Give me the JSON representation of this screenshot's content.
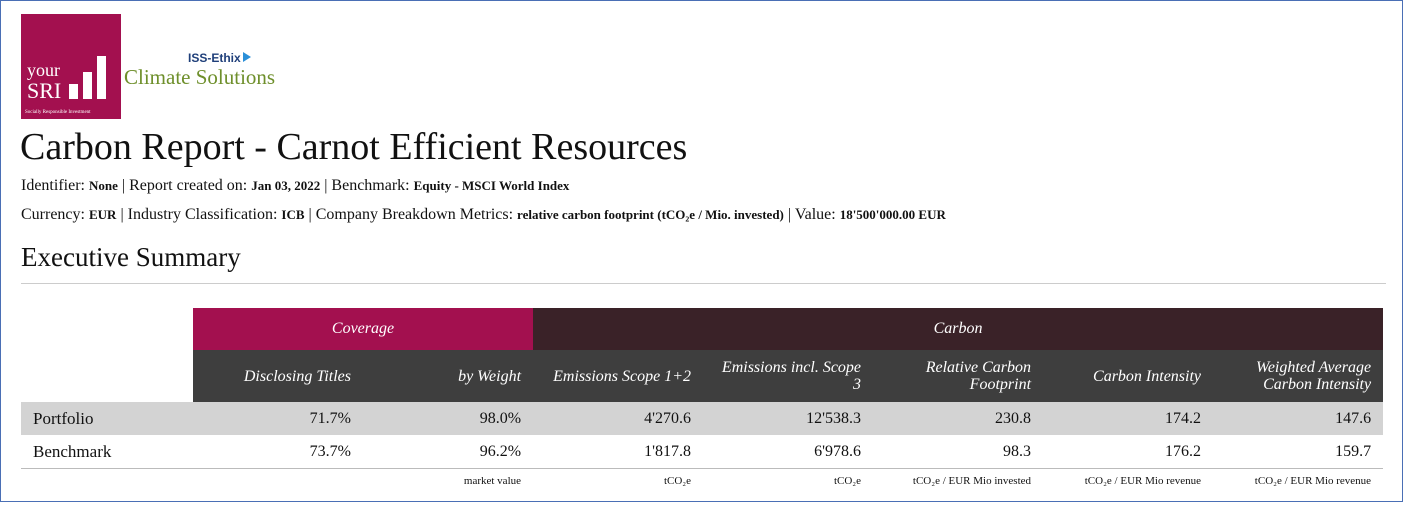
{
  "logo": {
    "brand_line1": "your",
    "brand_line2": "SRI",
    "tagline": "Socially Responsible Investment",
    "partner": "ISS-Ethix",
    "product": "Climate Solutions"
  },
  "title": "Carbon Report - Carnot Efficient Resources",
  "separator": "|",
  "meta_lines": [
    [
      {
        "label": "Identifier:",
        "value": "None"
      },
      {
        "label": "Report created on:",
        "value": "Jan 03, 2022"
      },
      {
        "label": "Benchmark:",
        "value": "Equity - MSCI World Index"
      }
    ],
    [
      {
        "label": "Currency:",
        "value": "EUR"
      },
      {
        "label": "Industry Classification:",
        "value": "ICB"
      },
      {
        "label": "Company Breakdown Metrics:",
        "value": "relative carbon footprint (tCO₂e / Mio. invested)"
      },
      {
        "label": "Value:",
        "value": "18'500'000.00 EUR"
      }
    ]
  ],
  "section_title": "Executive Summary",
  "table": {
    "groups": [
      "Coverage",
      "Carbon"
    ],
    "columns": [
      "Disclosing Titles",
      "by Weight",
      "Emissions Scope 1+2",
      "Emissions incl. Scope 3",
      "Relative Carbon Footprint",
      "Carbon Intensity",
      "Weighted Average Carbon Intensity"
    ],
    "rows": [
      {
        "label": "Portfolio",
        "cells": [
          "71.7%",
          "98.0%",
          "4'270.6",
          "12'538.3",
          "230.8",
          "174.2",
          "147.6"
        ]
      },
      {
        "label": "Benchmark",
        "cells": [
          "73.7%",
          "96.2%",
          "1'817.8",
          "6'978.6",
          "98.3",
          "176.2",
          "159.7"
        ]
      }
    ],
    "units": [
      null,
      "market value",
      "tCO₂e",
      "tCO₂e",
      "tCO₂e / EUR Mio invested",
      "tCO₂e / EUR Mio revenue",
      "tCO₂e / EUR Mio revenue"
    ]
  }
}
